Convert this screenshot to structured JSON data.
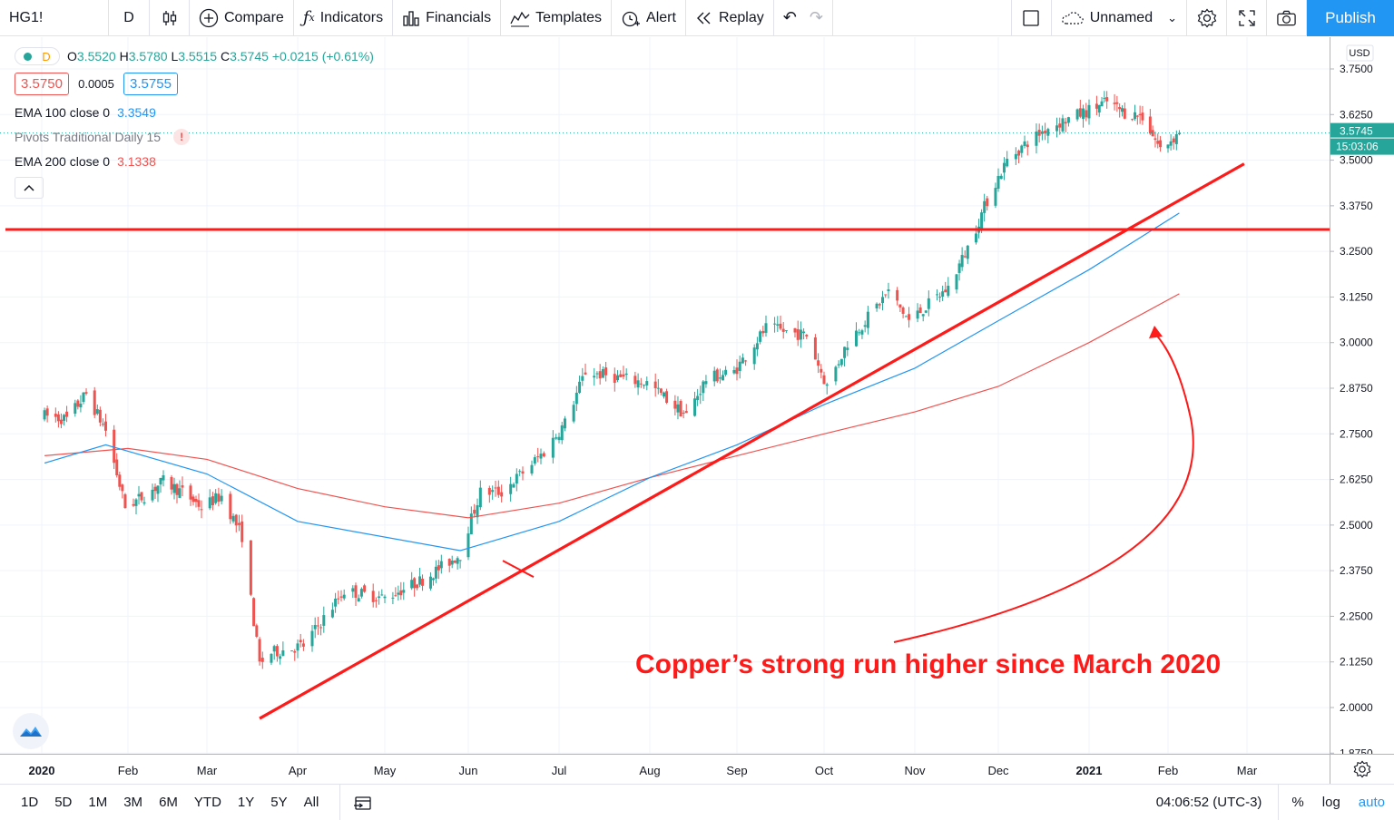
{
  "toolbar": {
    "symbol": "HG1!",
    "interval": "D",
    "compare": "Compare",
    "indicators": "Indicators",
    "financials": "Financials",
    "templates": "Templates",
    "alert": "Alert",
    "replay": "Replay",
    "layout_name": "Unnamed",
    "publish": "Publish"
  },
  "legend": {
    "source_interval": "D",
    "open_label": "O",
    "open": "3.5520",
    "high_label": "H",
    "high": "3.5780",
    "low_label": "L",
    "low": "3.5515",
    "close_label": "C",
    "close": "3.5745",
    "change": "+0.0215 (+0.61%)",
    "bid": "3.5750",
    "spread": "0.0005",
    "ask": "3.5755",
    "indicators": [
      {
        "name": "EMA 100 close 0",
        "value": "3.3549",
        "color": "#2196f3"
      },
      {
        "name": "Pivots Traditional Daily 15",
        "value": "!",
        "color": "#ef5350"
      },
      {
        "name": "EMA 200 close 0",
        "value": "3.1338",
        "color": "#ef5350"
      }
    ],
    "collapse_icon": "chevron-up-icon"
  },
  "price_axis": {
    "currency": "USD",
    "ticks": [
      "3.7500",
      "3.6250",
      "3.5000",
      "3.3750",
      "3.2500",
      "3.1250",
      "3.0000",
      "2.8750",
      "2.7500",
      "2.6250",
      "2.5000",
      "2.3750",
      "2.2500",
      "2.1250",
      "2.0000",
      "1.8750"
    ],
    "last_price": "3.5745",
    "countdown": "15:03:06"
  },
  "time_axis": {
    "labels": [
      "2020",
      "Feb",
      "Mar",
      "Apr",
      "May",
      "Jun",
      "Jul",
      "Aug",
      "Sep",
      "Oct",
      "Nov",
      "Dec",
      "2021",
      "Feb",
      "Mar"
    ],
    "settings_icon": "gear-icon"
  },
  "bottom_bar": {
    "ranges": [
      "1D",
      "5D",
      "1M",
      "3M",
      "6M",
      "YTD",
      "1Y",
      "5Y",
      "All"
    ],
    "goto_icon": "calendar-goto-icon",
    "clock": "04:06:52 (UTC-3)",
    "percent": "%",
    "log": "log",
    "auto": "auto"
  },
  "annotation": "Copper’s strong run higher since March 2020",
  "colors": {
    "up": "#26a69a",
    "down": "#ef5350",
    "ema100": "#2196f3",
    "ema200": "#ef5350",
    "drawing": "#ff1a1a",
    "accent": "#2196f3"
  },
  "chart_data": {
    "type": "candlestick",
    "symbol": "HG1!",
    "interval": "D",
    "ylim": [
      1.875,
      3.75
    ],
    "xlabels": [
      "2020",
      "Feb",
      "Mar",
      "Apr",
      "May",
      "Jun",
      "Jul",
      "Aug",
      "Sep",
      "Oct",
      "Nov",
      "Dec",
      "2021",
      "Feb",
      "Mar"
    ],
    "close_path": [
      {
        "date": "2020-01-02",
        "close": 2.8
      },
      {
        "date": "2020-01-10",
        "close": 2.79
      },
      {
        "date": "2020-01-17",
        "close": 2.86
      },
      {
        "date": "2020-01-24",
        "close": 2.76
      },
      {
        "date": "2020-01-31",
        "close": 2.55
      },
      {
        "date": "2020-02-07",
        "close": 2.58
      },
      {
        "date": "2020-02-14",
        "close": 2.62
      },
      {
        "date": "2020-02-21",
        "close": 2.59
      },
      {
        "date": "2020-02-28",
        "close": 2.55
      },
      {
        "date": "2020-03-06",
        "close": 2.58
      },
      {
        "date": "2020-03-13",
        "close": 2.47
      },
      {
        "date": "2020-03-19",
        "close": 2.12
      },
      {
        "date": "2020-03-23",
        "close": 2.15
      },
      {
        "date": "2020-04-03",
        "close": 2.17
      },
      {
        "date": "2020-04-17",
        "close": 2.32
      },
      {
        "date": "2020-05-01",
        "close": 2.3
      },
      {
        "date": "2020-05-15",
        "close": 2.35
      },
      {
        "date": "2020-05-29",
        "close": 2.42
      },
      {
        "date": "2020-06-05",
        "close": 2.59
      },
      {
        "date": "2020-06-12",
        "close": 2.59
      },
      {
        "date": "2020-06-26",
        "close": 2.7
      },
      {
        "date": "2020-07-03",
        "close": 2.78
      },
      {
        "date": "2020-07-10",
        "close": 2.92
      },
      {
        "date": "2020-07-24",
        "close": 2.9
      },
      {
        "date": "2020-07-31",
        "close": 2.89
      },
      {
        "date": "2020-08-14",
        "close": 2.8
      },
      {
        "date": "2020-08-21",
        "close": 2.9
      },
      {
        "date": "2020-08-31",
        "close": 2.92
      },
      {
        "date": "2020-09-11",
        "close": 3.04
      },
      {
        "date": "2020-09-25",
        "close": 3.02
      },
      {
        "date": "2020-10-02",
        "close": 2.88
      },
      {
        "date": "2020-10-09",
        "close": 3.0
      },
      {
        "date": "2020-10-23",
        "close": 3.14
      },
      {
        "date": "2020-10-30",
        "close": 3.06
      },
      {
        "date": "2020-11-13",
        "close": 3.15
      },
      {
        "date": "2020-11-20",
        "close": 3.26
      },
      {
        "date": "2020-11-27",
        "close": 3.39
      },
      {
        "date": "2020-12-04",
        "close": 3.5
      },
      {
        "date": "2020-12-11",
        "close": 3.55
      },
      {
        "date": "2020-12-18",
        "close": 3.59
      },
      {
        "date": "2021-01-08",
        "close": 3.66
      },
      {
        "date": "2021-01-15",
        "close": 3.63
      },
      {
        "date": "2021-01-22",
        "close": 3.62
      },
      {
        "date": "2021-01-29",
        "close": 3.53
      },
      {
        "date": "2021-02-05",
        "close": 3.5745
      }
    ],
    "ema100": [
      {
        "date": "2020-01-02",
        "value": 2.67
      },
      {
        "date": "2020-01-24",
        "value": 2.72
      },
      {
        "date": "2020-03-01",
        "value": 2.64
      },
      {
        "date": "2020-04-01",
        "value": 2.51
      },
      {
        "date": "2020-05-29",
        "value": 2.43
      },
      {
        "date": "2020-07-01",
        "value": 2.51
      },
      {
        "date": "2020-08-01",
        "value": 2.63
      },
      {
        "date": "2020-09-01",
        "value": 2.72
      },
      {
        "date": "2020-10-01",
        "value": 2.83
      },
      {
        "date": "2020-11-01",
        "value": 2.93
      },
      {
        "date": "2020-12-01",
        "value": 3.06
      },
      {
        "date": "2021-01-01",
        "value": 3.2
      },
      {
        "date": "2021-02-05",
        "value": 3.3549
      }
    ],
    "ema200": [
      {
        "date": "2020-01-02",
        "value": 2.69
      },
      {
        "date": "2020-02-01",
        "value": 2.71
      },
      {
        "date": "2020-03-01",
        "value": 2.68
      },
      {
        "date": "2020-04-01",
        "value": 2.6
      },
      {
        "date": "2020-05-01",
        "value": 2.55
      },
      {
        "date": "2020-06-01",
        "value": 2.52
      },
      {
        "date": "2020-07-01",
        "value": 2.56
      },
      {
        "date": "2020-08-01",
        "value": 2.63
      },
      {
        "date": "2020-09-01",
        "value": 2.69
      },
      {
        "date": "2020-10-01",
        "value": 2.75
      },
      {
        "date": "2020-11-01",
        "value": 2.81
      },
      {
        "date": "2020-12-01",
        "value": 2.88
      },
      {
        "date": "2021-01-01",
        "value": 3.0
      },
      {
        "date": "2021-02-05",
        "value": 3.1338
      }
    ],
    "drawings": {
      "horizontal_line": 3.31,
      "trendline": [
        {
          "date": "2020-03-19",
          "value": 1.97
        },
        {
          "date": "2021-02-28",
          "value": 3.49
        }
      ]
    }
  }
}
